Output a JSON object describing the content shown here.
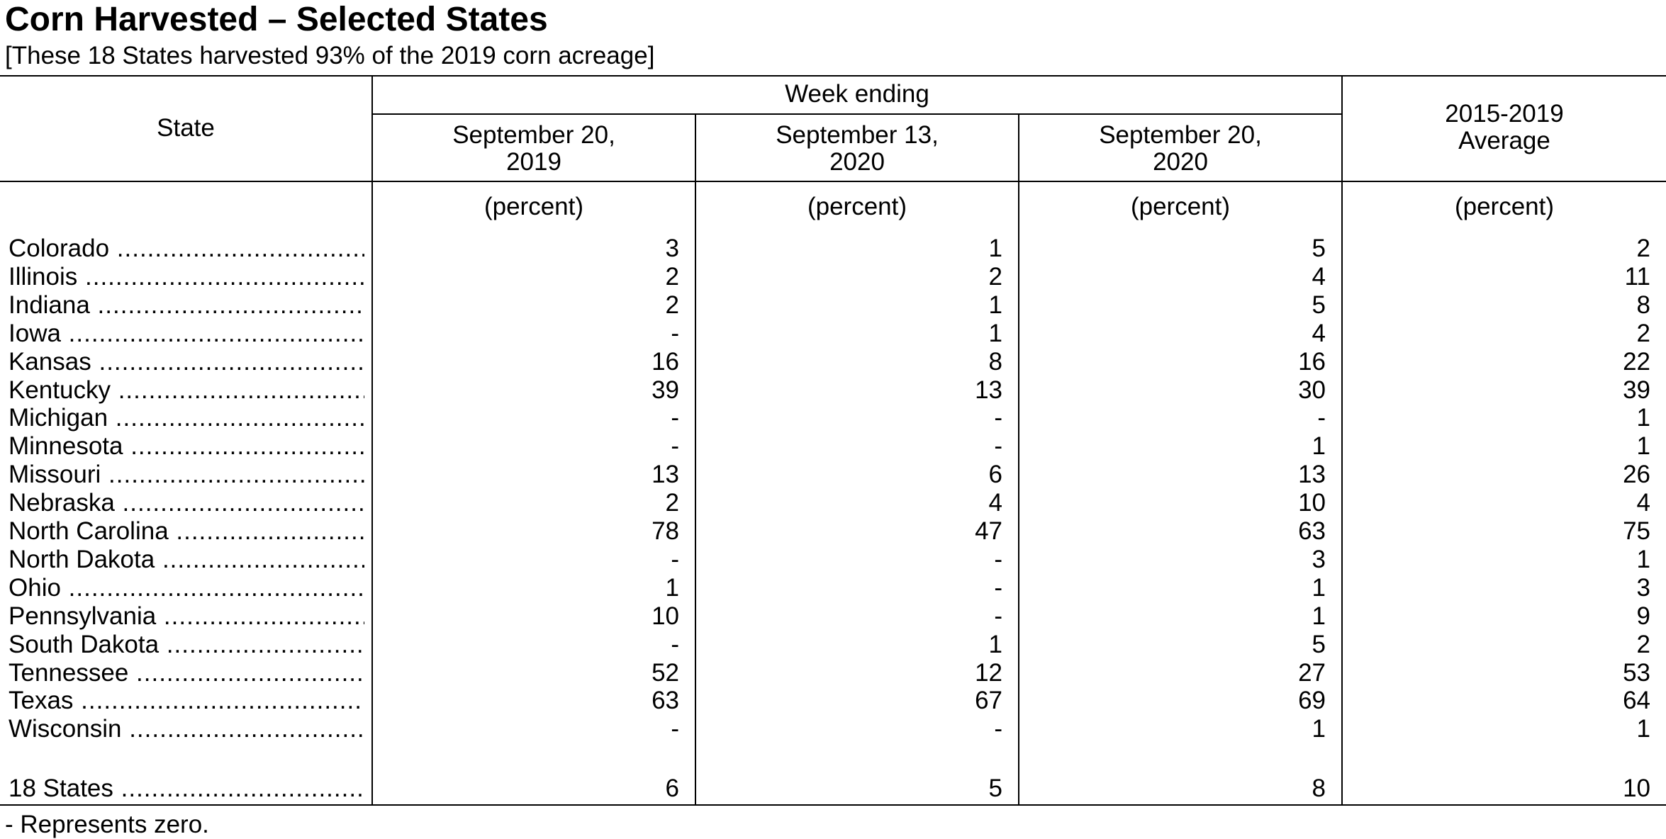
{
  "title": "Corn Harvested – Selected States",
  "subtitle": "[These 18 States harvested 93% of the 2019 corn acreage]",
  "header": {
    "state": "State",
    "group": "Week ending",
    "col1": "September 20,\n2019",
    "col2": "September 13,\n2020",
    "col3": "September 20,\n2020",
    "col4": "2015-2019\nAverage"
  },
  "units": [
    "(percent)",
    "(percent)",
    "(percent)",
    "(percent)"
  ],
  "rows": [
    {
      "state": "Colorado",
      "values": [
        "3",
        "1",
        "5",
        "2"
      ]
    },
    {
      "state": "Illinois",
      "values": [
        "2",
        "2",
        "4",
        "11"
      ]
    },
    {
      "state": "Indiana",
      "values": [
        "2",
        "1",
        "5",
        "8"
      ]
    },
    {
      "state": "Iowa",
      "values": [
        "-",
        "1",
        "4",
        "2"
      ]
    },
    {
      "state": "Kansas",
      "values": [
        "16",
        "8",
        "16",
        "22"
      ]
    },
    {
      "state": "Kentucky",
      "values": [
        "39",
        "13",
        "30",
        "39"
      ]
    },
    {
      "state": "Michigan",
      "values": [
        "-",
        "-",
        "-",
        "1"
      ]
    },
    {
      "state": "Minnesota",
      "values": [
        "-",
        "-",
        "1",
        "1"
      ]
    },
    {
      "state": "Missouri",
      "values": [
        "13",
        "6",
        "13",
        "26"
      ]
    },
    {
      "state": "Nebraska",
      "values": [
        "2",
        "4",
        "10",
        "4"
      ]
    },
    {
      "state": "North Carolina",
      "values": [
        "78",
        "47",
        "63",
        "75"
      ]
    },
    {
      "state": "North Dakota",
      "values": [
        "-",
        "-",
        "3",
        "1"
      ]
    },
    {
      "state": "Ohio",
      "values": [
        "1",
        "-",
        "1",
        "3"
      ]
    },
    {
      "state": "Pennsylvania",
      "values": [
        "10",
        "-",
        "1",
        "9"
      ]
    },
    {
      "state": "South Dakota",
      "values": [
        "-",
        "1",
        "5",
        "2"
      ]
    },
    {
      "state": "Tennessee",
      "values": [
        "52",
        "12",
        "27",
        "53"
      ]
    },
    {
      "state": "Texas",
      "values": [
        "63",
        "67",
        "69",
        "64"
      ]
    },
    {
      "state": "Wisconsin",
      "values": [
        "-",
        "-",
        "1",
        "1"
      ]
    }
  ],
  "total": {
    "state": "18 States",
    "values": [
      "6",
      "5",
      "8",
      "10"
    ]
  },
  "footnote": "- Represents zero."
}
